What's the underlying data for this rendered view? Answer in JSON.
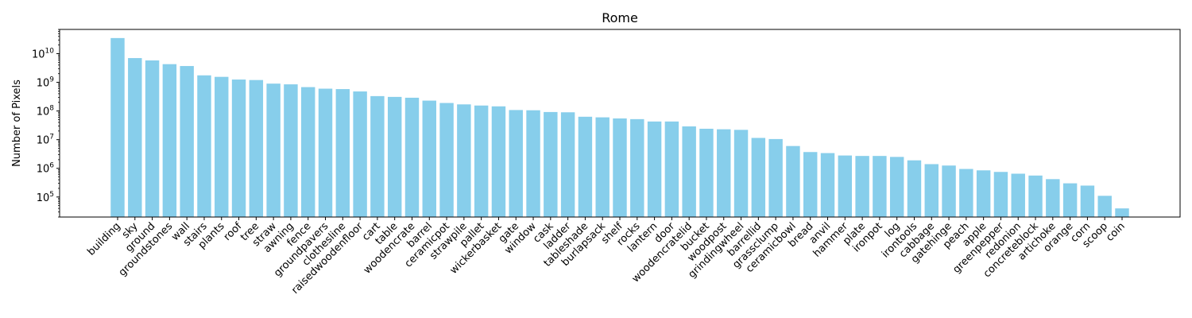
{
  "chart_data": {
    "type": "bar",
    "title": "Rome",
    "xlabel": "",
    "ylabel": "Number of Pixels",
    "yscale": "log",
    "ylim": [
      20000,
      70000000000
    ],
    "yticks": [
      100000,
      1000000,
      10000000,
      100000000,
      1000000000,
      10000000000
    ],
    "ytick_labels": [
      {
        "base": "10",
        "exp": "5"
      },
      {
        "base": "10",
        "exp": "6"
      },
      {
        "base": "10",
        "exp": "7"
      },
      {
        "base": "10",
        "exp": "8"
      },
      {
        "base": "10",
        "exp": "9"
      },
      {
        "base": "10",
        "exp": "10"
      }
    ],
    "bar_color": "#87ceeb",
    "categories": [
      "building",
      "sky",
      "ground",
      "groundstones",
      "wall",
      "stairs",
      "plants",
      "roof",
      "tree",
      "straw",
      "awning",
      "fence",
      "groundpavers",
      "clothesline",
      "raisedwoodenfloor",
      "cart",
      "table",
      "woodencrate",
      "barrel",
      "ceramicpot",
      "strawpile",
      "pallet",
      "wickerbasket",
      "gate",
      "window",
      "cask",
      "ladder",
      "tableshade",
      "burlapsack",
      "shelf",
      "rocks",
      "lantern",
      "door",
      "woodencratelid",
      "bucket",
      "woodpost",
      "grindingwheel",
      "barrellid",
      "grassclump",
      "ceramicbowl",
      "bread",
      "anvil",
      "hammer",
      "plate",
      "ironpot",
      "log",
      "irontools",
      "cabbage",
      "gatehinge",
      "peach",
      "apple",
      "greenpepper",
      "redonion",
      "concreteblock",
      "artichoke",
      "orange",
      "corn",
      "scoop",
      "coin"
    ],
    "values": [
      35000000000,
      7000000000,
      5800000000,
      4300000000,
      3700000000,
      1750000000,
      1550000000,
      1250000000,
      1200000000,
      900000000,
      850000000,
      680000000,
      600000000,
      580000000,
      480000000,
      330000000,
      310000000,
      290000000,
      230000000,
      190000000,
      170000000,
      155000000,
      145000000,
      108000000,
      106000000,
      92000000,
      90000000,
      63000000,
      60000000,
      55000000,
      52000000,
      43000000,
      43000000,
      29000000,
      24000000,
      23000000,
      22000000,
      11500000,
      10500000,
      6000000,
      3700000,
      3400000,
      2800000,
      2700000,
      2700000,
      2500000,
      1900000,
      1400000,
      1250000,
      950000,
      850000,
      750000,
      650000,
      560000,
      420000,
      300000,
      250000,
      110000,
      40000
    ]
  }
}
